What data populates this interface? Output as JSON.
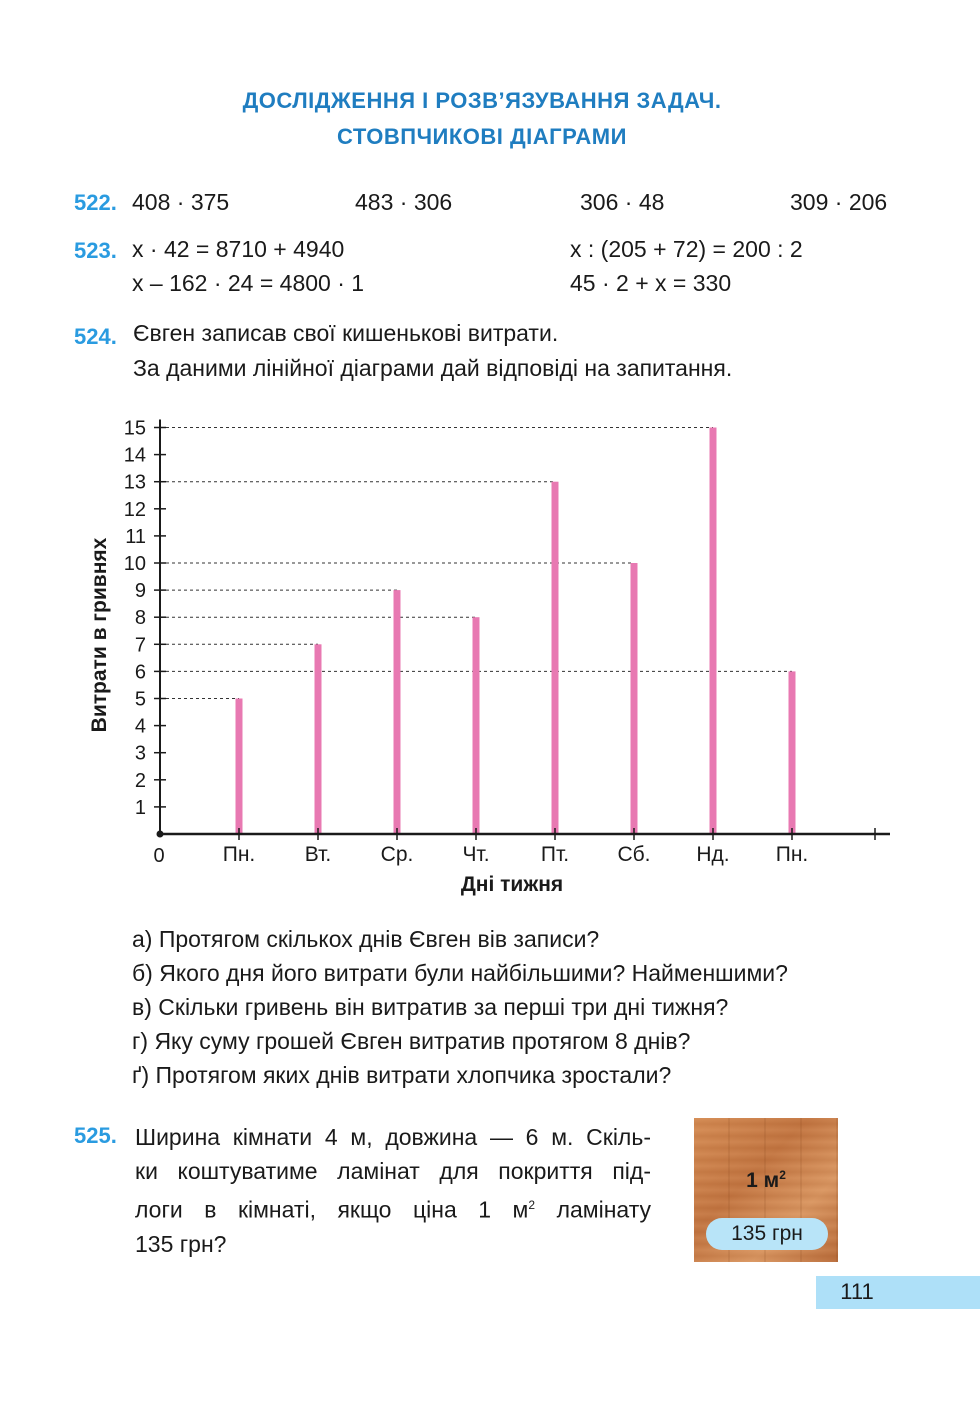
{
  "header": {
    "title_line1": "ДОСЛІДЖЕННЯ І РОЗВ’ЯЗУВАННЯ ЗАДАЧ.",
    "title_line2": "СТОВПЧИКОВІ ДІАГРАМИ"
  },
  "task522": {
    "number": "522.",
    "exprs": [
      "408 · 375",
      "483 · 306",
      "306 · 48",
      "309 · 206"
    ]
  },
  "task523": {
    "number": "523.",
    "eq1": "x · 42 = 8710 + 4940",
    "eq2": "x : (205 + 72) = 200 : 2",
    "eq3": "x – 162 · 24 = 4800 · 1",
    "eq4": "45 · 2 + x = 330"
  },
  "task524": {
    "number": "524.",
    "line1": "Євген записав свої кишенькові витрати.",
    "line2": "За даними лінійної діаграми дай відповіді на запитання.",
    "questions": [
      "а) Протягом скількох днів Євген вів записи?",
      "б) Якого дня його витрати були найбільшими? Найменшими?",
      "в) Скільки гривень він витратив за перші три дні тижня?",
      "г) Яку суму грошей Євген витратив протягом 8 днів?",
      "ґ) Протягом яких днів витрати хлопчика зростали?"
    ]
  },
  "chart_data": {
    "type": "bar",
    "categories": [
      "Пн.",
      "Вт.",
      "Ср.",
      "Чт.",
      "Пт.",
      "Сб.",
      "Нд.",
      "Пн."
    ],
    "values": [
      5,
      7,
      9,
      8,
      13,
      10,
      15,
      6
    ],
    "xlabel": "Дні тижня",
    "ylabel": "Витрати в гривнях",
    "ylim": [
      0,
      15
    ],
    "yticks": [
      1,
      2,
      3,
      4,
      5,
      6,
      7,
      8,
      9,
      10,
      11,
      12,
      13,
      14,
      15
    ],
    "origin_label": "0",
    "bar_color": "#e879b2",
    "guide_lines": "dashed"
  },
  "task525": {
    "number": "525.",
    "line1": "Ширина кімнати 4 м, довжина — 6 м. Скіль-",
    "line2": "ки коштуватиме ламінат для покриття під-",
    "line3_a": "логи в кімнаті, якщо ціна 1 м",
    "line3_sup": "2",
    "line3_b": " ламінату",
    "line4": "135 грн?",
    "laminate_area": "1 м",
    "laminate_area_sup": "2",
    "laminate_price": "135 грн"
  },
  "footer": {
    "page_number": "111"
  },
  "colors": {
    "title": "#1f7dc0",
    "task_number": "#2a9be0",
    "page_tab": "#aee0f8",
    "price_badge": "#b8e4f8"
  }
}
